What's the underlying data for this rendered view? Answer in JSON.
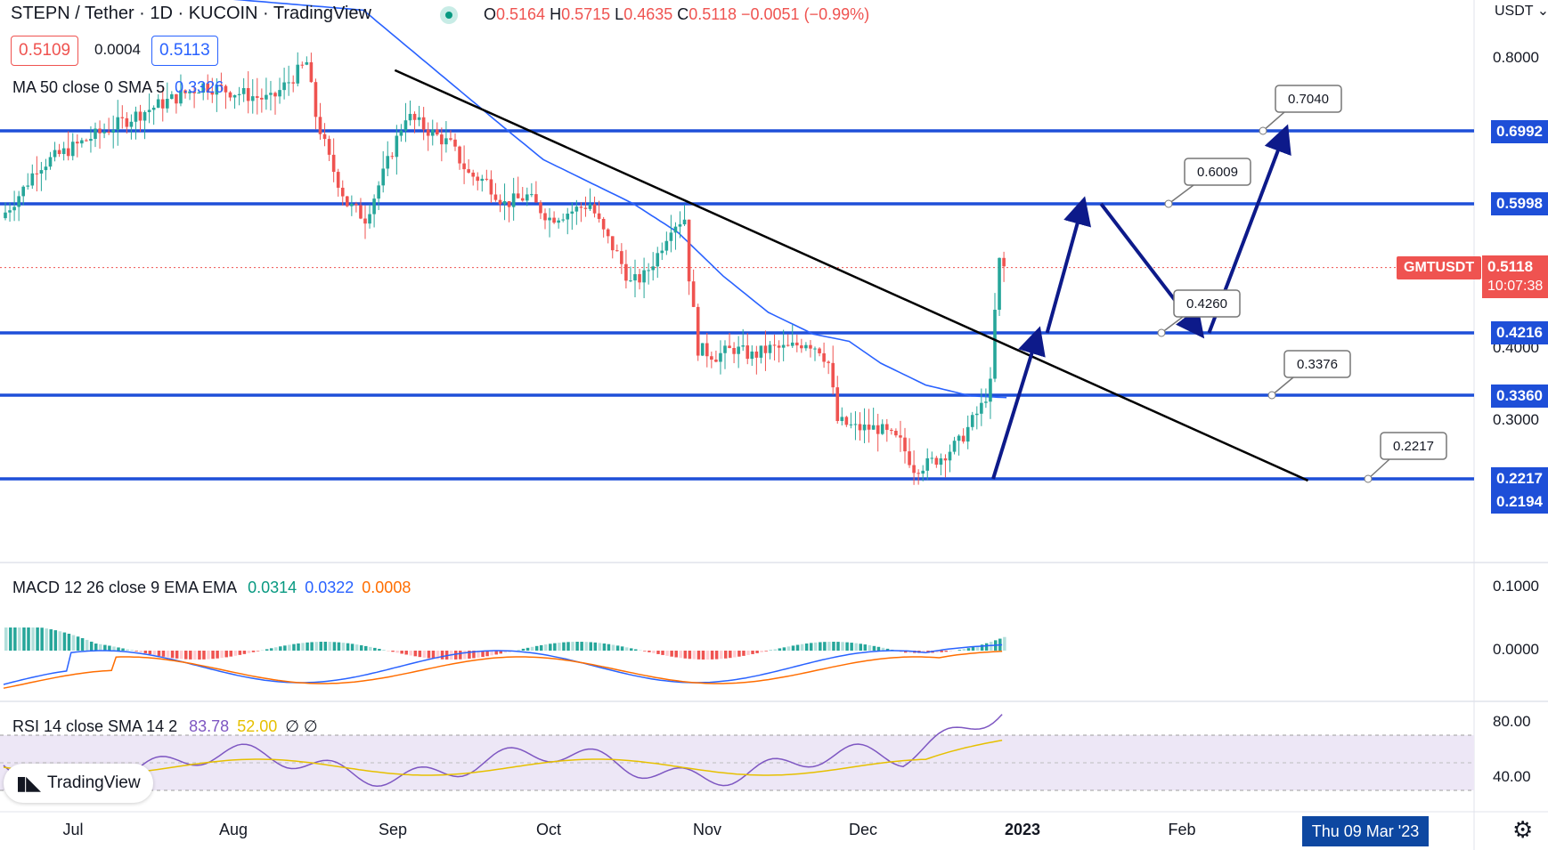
{
  "header": {
    "symbol": "STEPN",
    "quote": "Tether · 1D · KUCOIN · TradingView",
    "separator": "/",
    "ohlc": {
      "o_label": "O",
      "o": "0.5164",
      "h_label": "H",
      "h": "0.5715",
      "l_label": "L",
      "l": "0.4635",
      "c_label": "C",
      "c": "0.5118",
      "change": "−0.0051 (−0.99%)"
    },
    "bid": "0.5109",
    "spread": "0.0004",
    "ask": "0.5113",
    "ma_label": "MA 50 close 0 SMA 5",
    "ma_value": "0.3326",
    "currency": "USDT"
  },
  "indicators": {
    "macd": {
      "label": "MACD 12 26 close 9 EMA EMA",
      "v1": "0.0314",
      "v2": "0.0322",
      "v3": "0.0008"
    },
    "rsi": {
      "label": "RSI 14 close SMA 14 2",
      "v1": "83.78",
      "v2": "52.00",
      "v3": "∅ ∅"
    }
  },
  "price_axis": {
    "ticks": [
      "0.8000",
      "0.4000",
      "0.3000"
    ],
    "labels": [
      {
        "text": "0.6992",
        "color": "#1e4fd8"
      },
      {
        "text": "0.5998",
        "color": "#1e4fd8"
      },
      {
        "text": "0.4216",
        "color": "#1e4fd8"
      },
      {
        "text": "0.3360",
        "color": "#1e4fd8"
      },
      {
        "text": "0.2217",
        "color": "#1e4fd8"
      },
      {
        "text": "0.2194",
        "color": "#1e4fd8"
      }
    ],
    "last_price": "0.5118",
    "countdown": "10:07:38",
    "ticker": "GMTUSDT"
  },
  "macd_axis": [
    "0.1000",
    "0.0000"
  ],
  "rsi_axis": [
    "80.00",
    "40.00"
  ],
  "time_axis": [
    "Jul",
    "Aug",
    "Sep",
    "Oct",
    "Nov",
    "Dec",
    "2023",
    "Feb"
  ],
  "time_highlight": "Thu 09 Mar '23",
  "callouts": [
    "0.7040",
    "0.6009",
    "0.4260",
    "0.3376",
    "0.2217"
  ],
  "branding": "TradingView",
  "colors": {
    "up": "#26a69a",
    "down": "#ef5350",
    "level": "#1e4fd8",
    "arrow": "#0d1a8a",
    "ma": "#2962ff"
  },
  "chart_data": {
    "type": "candlestick",
    "symbol": "GMTUSDT",
    "timeframe": "1D",
    "x_categories": [
      "Jul",
      "Aug",
      "Sep",
      "Oct",
      "Nov",
      "Dec",
      "2023",
      "Feb"
    ],
    "y_range": [
      0.19,
      0.87
    ],
    "horizontal_levels": [
      0.6992,
      0.5998,
      0.4216,
      0.336,
      0.2194
    ],
    "price_path": [
      [
        0,
        0.58
      ],
      [
        5,
        0.62
      ],
      [
        8,
        0.65
      ],
      [
        20,
        0.69
      ],
      [
        30,
        0.72
      ],
      [
        45,
        0.76
      ],
      [
        60,
        0.74
      ],
      [
        68,
        0.79
      ],
      [
        70,
        0.72
      ],
      [
        73,
        0.66
      ],
      [
        77,
        0.6
      ],
      [
        81,
        0.58
      ],
      [
        85,
        0.64
      ],
      [
        90,
        0.72
      ],
      [
        95,
        0.7
      ],
      [
        100,
        0.68
      ],
      [
        104,
        0.64
      ],
      [
        108,
        0.63
      ],
      [
        112,
        0.6
      ],
      [
        117,
        0.61
      ],
      [
        122,
        0.58
      ],
      [
        127,
        0.59
      ],
      [
        131,
        0.6
      ],
      [
        134,
        0.56
      ],
      [
        137,
        0.53
      ],
      [
        140,
        0.49
      ],
      [
        143,
        0.5
      ],
      [
        146,
        0.53
      ],
      [
        149,
        0.57
      ],
      [
        152,
        0.58
      ],
      [
        153,
        0.5
      ],
      [
        155,
        0.4
      ],
      [
        159,
        0.39
      ],
      [
        163,
        0.4
      ],
      [
        167,
        0.39
      ],
      [
        171,
        0.4
      ],
      [
        175,
        0.4
      ],
      [
        179,
        0.41
      ],
      [
        182,
        0.4
      ],
      [
        184,
        0.38
      ],
      [
        186,
        0.3
      ],
      [
        190,
        0.29
      ],
      [
        195,
        0.29
      ],
      [
        200,
        0.27
      ],
      [
        203,
        0.235
      ],
      [
        206,
        0.24
      ],
      [
        209,
        0.25
      ],
      [
        213,
        0.27
      ],
      [
        216,
        0.3
      ],
      [
        218,
        0.32
      ],
      [
        220,
        0.35
      ],
      [
        221,
        0.45
      ],
      [
        222,
        0.52
      ],
      [
        223,
        0.5118
      ]
    ],
    "ma50_path": [
      [
        0,
        0.92
      ],
      [
        40,
        0.88
      ],
      [
        80,
        0.86
      ],
      [
        100,
        0.76
      ],
      [
        120,
        0.66
      ],
      [
        140,
        0.6
      ],
      [
        150,
        0.56
      ],
      [
        160,
        0.5
      ],
      [
        170,
        0.45
      ],
      [
        180,
        0.42
      ],
      [
        188,
        0.41
      ],
      [
        195,
        0.38
      ],
      [
        205,
        0.35
      ],
      [
        215,
        0.335
      ],
      [
        223,
        0.3326
      ]
    ],
    "trendline": {
      "from": [
        87,
        0.78
      ],
      "to": [
        290,
        0.217
      ]
    },
    "macd": {
      "macd": 0.0314,
      "signal": 0.0322,
      "histogram": 0.0008,
      "axis": [
        0.0,
        0.1
      ]
    },
    "rsi": {
      "rsi": 83.78,
      "sma": 52.0,
      "band": [
        30,
        70
      ]
    },
    "projection_arrows": [
      {
        "from": [
          220,
          0.2194
        ],
        "to": [
          230,
          0.4216
        ]
      },
      {
        "from": [
          232,
          0.4216
        ],
        "to": [
          240,
          0.6009
        ]
      },
      {
        "from": [
          244,
          0.5998
        ],
        "to": [
          266,
          0.4216
        ]
      },
      {
        "from": [
          268,
          0.4216
        ],
        "to": [
          285,
          0.6992
        ]
      }
    ]
  }
}
